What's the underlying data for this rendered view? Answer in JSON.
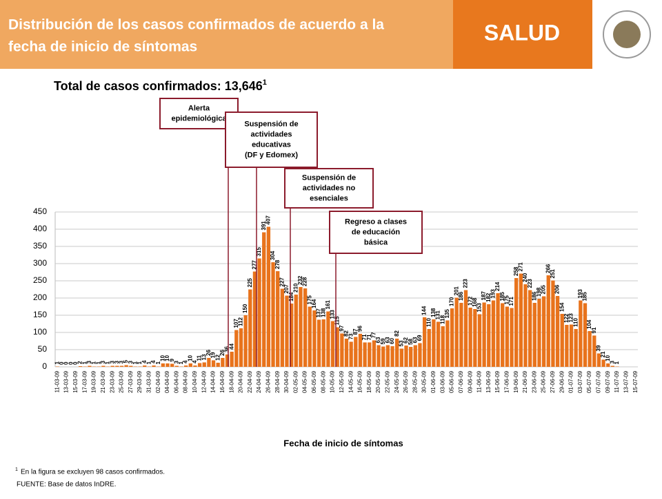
{
  "header": {
    "title_lines": [
      "Distribución de los casos confirmados de acuerdo a la",
      "fecha de inicio de síntomas"
    ],
    "brand": "SALUD"
  },
  "total": {
    "text": "Total de casos confirmados: 13,646",
    "mark": "1"
  },
  "chart_data": {
    "type": "bar",
    "color": "#e8731c",
    "xlabel": "Fecha de inicio de síntomas",
    "ylim": [
      0,
      450
    ],
    "yticks": [
      0,
      50,
      100,
      150,
      200,
      250,
      300,
      350,
      400,
      450
    ],
    "grid": true,
    "categories": [
      "11-03-09",
      null,
      "13-03-09",
      null,
      "15-03-09",
      null,
      "17-03-09",
      null,
      "19-03-09",
      null,
      "21-03-09",
      null,
      "23-03-09",
      null,
      "25-03-09",
      null,
      "27-03-09",
      null,
      "29-03-09",
      null,
      "31-03-09",
      null,
      "02-04-09",
      null,
      "04-04-09",
      null,
      "06-04-09",
      null,
      "08-04-09",
      null,
      "10-04-09",
      null,
      "12-04-09",
      null,
      "14-04-09",
      null,
      "16-04-09",
      null,
      "18-04-09",
      null,
      "20-04-09",
      null,
      "22-04-09",
      null,
      "24-04-09",
      null,
      "26-04-09",
      null,
      "28-04-09",
      null,
      "30-04-09",
      null,
      "02-05-09",
      null,
      "04-05-09",
      null,
      "06-05-09",
      null,
      "08-05-09",
      null,
      "10-05-09",
      null,
      "12-05-09",
      null,
      "14-05-09",
      null,
      "16-05-09",
      null,
      "18-05-09",
      null,
      "20-05-09",
      null,
      "22-05-09",
      null,
      "24-05-09",
      null,
      "26-05-09",
      null,
      "28-05-09",
      null,
      "30-05-09",
      null,
      "01-06-09",
      null,
      "03-06-09",
      null,
      "05-06-09",
      null,
      "07-06-09",
      null,
      "09-06-09",
      null,
      "11-06-09",
      null,
      "13-06-09",
      null,
      "15-06-09",
      null,
      "17-06-09",
      null,
      "19-06-09",
      null,
      "21-06-09",
      null,
      "23-06-09",
      null,
      "25-06-09",
      null,
      "27-06-09",
      null,
      "29-06-09",
      null,
      "01-07-09",
      null,
      "03-07-09",
      null,
      "05-07-09",
      null,
      "07-07-09",
      null,
      "09-07-09",
      null,
      "11-07-09",
      null,
      "13-07-09",
      null,
      "15-07-09"
    ],
    "values": [
      1,
      0,
      0,
      0,
      0,
      2,
      1,
      3,
      1,
      1,
      3,
      1,
      3,
      3,
      3,
      5,
      3,
      1,
      1,
      4,
      1,
      4,
      1,
      10,
      10,
      9,
      3,
      1,
      4,
      10,
      4,
      11,
      13,
      26,
      19,
      12,
      26,
      36,
      44,
      107,
      112,
      150,
      225,
      277,
      315,
      391,
      407,
      304,
      278,
      227,
      207,
      184,
      210,
      232,
      228,
      175,
      164,
      137,
      138,
      161,
      133,
      115,
      97,
      82,
      73,
      87,
      96,
      71,
      71,
      77,
      63,
      59,
      63,
      60,
      82,
      53,
      62,
      58,
      63,
      69,
      144,
      110,
      138,
      131,
      118,
      135,
      170,
      201,
      186,
      223,
      172,
      168,
      153,
      187,
      182,
      193,
      214,
      185,
      175,
      171,
      258,
      271,
      240,
      223,
      186,
      198,
      205,
      266,
      251,
      206,
      154,
      122,
      123,
      110,
      193,
      185,
      104,
      91,
      39,
      21,
      10,
      3,
      1,
      null,
      null,
      null,
      null
    ],
    "annotations": [
      {
        "lines": [
          "Alerta",
          "epidemiológica"
        ]
      },
      {
        "lines": [
          "Suspensión de",
          "actividades",
          "educativas",
          "(DF y Edomex)"
        ]
      },
      {
        "lines": [
          "Suspensión de",
          "actividades no",
          "esenciales"
        ]
      },
      {
        "lines": [
          "Regreso a clases",
          "de educación",
          "básica"
        ]
      }
    ]
  },
  "footnotes": {
    "mark": "1",
    "note": "En la figura se excluyen 98 casos confirmados.",
    "source": "FUENTE:  Base de datos InDRE."
  }
}
